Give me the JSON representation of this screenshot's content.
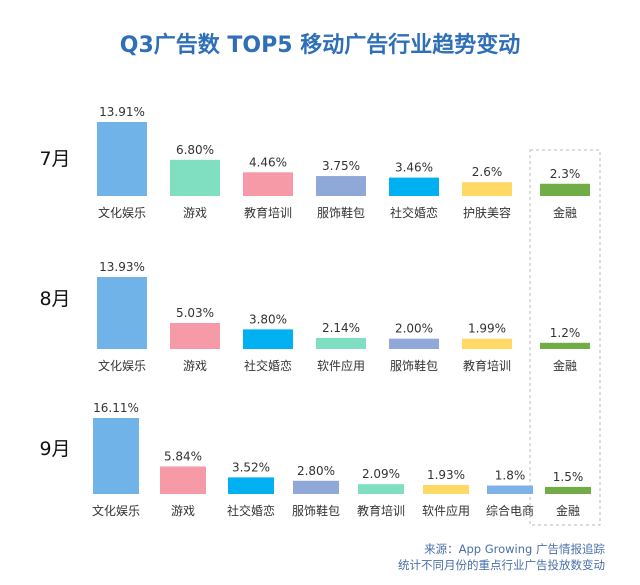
{
  "chart_data": [
    {
      "type": "bar",
      "title": "Q3广告数 TOP5 移动广告行业趋势变动",
      "row_label": "7月",
      "categories": [
        "文化娱乐",
        "游戏",
        "教育培训",
        "服饰鞋包",
        "社交婚恋",
        "护肤美容",
        "金融"
      ],
      "values": [
        13.91,
        6.8,
        4.46,
        3.75,
        3.46,
        2.6,
        2.3
      ],
      "value_labels": [
        "13.91%",
        "6.80%",
        "4.46%",
        "3.75%",
        "3.46%",
        "2.6%",
        "2.3%"
      ],
      "colors": [
        "#6fb3e8",
        "#7fdfc0",
        "#f79aa7",
        "#8fa8d8",
        "#00b0f0",
        "#ffd966",
        "#70ad47"
      ]
    },
    {
      "type": "bar",
      "row_label": "8月",
      "categories": [
        "文化娱乐",
        "游戏",
        "社交婚恋",
        "软件应用",
        "服饰鞋包",
        "教育培训",
        "金融"
      ],
      "values": [
        13.93,
        5.03,
        3.8,
        2.14,
        2.0,
        1.99,
        1.2
      ],
      "value_labels": [
        "13.93%",
        "5.03%",
        "3.80%",
        "2.14%",
        "2.00%",
        "1.99%",
        "1.2%"
      ],
      "colors": [
        "#6fb3e8",
        "#f79aa7",
        "#00b0f0",
        "#7fdfc0",
        "#8fa8d8",
        "#ffd966",
        "#70ad47"
      ]
    },
    {
      "type": "bar",
      "row_label": "9月",
      "categories": [
        "文化娱乐",
        "游戏",
        "社交婚恋",
        "服饰鞋包",
        "教育培训",
        "软件应用",
        "综合电商",
        "金融"
      ],
      "values": [
        16.11,
        5.84,
        3.52,
        2.8,
        2.09,
        1.93,
        1.8,
        1.5
      ],
      "value_labels": [
        "16.11%",
        "5.84%",
        "3.52%",
        "2.80%",
        "2.09%",
        "1.93%",
        "1.8%",
        "1.5%"
      ],
      "colors": [
        "#6fb3e8",
        "#f79aa7",
        "#00b0f0",
        "#8fa8d8",
        "#7fdfc0",
        "#ffd966",
        "#7fb3e8",
        "#70ad47"
      ]
    }
  ],
  "title": "Q3广告数 TOP5 移动广告行业趋势变动",
  "source_line1": "来源：App Growing 广告情报追踪",
  "source_line2": "统计不同月份的重点行业广告投放数变动",
  "watermark": "App Growing"
}
